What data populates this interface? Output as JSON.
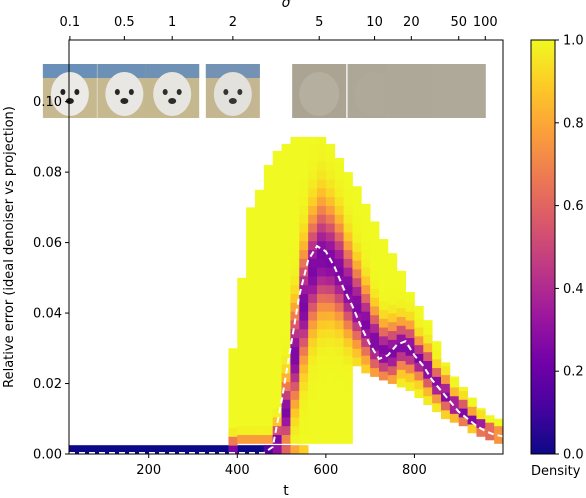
{
  "chart_data": {
    "type": "heatmap",
    "title": "",
    "xlabel": "t",
    "ylabel": "Relative error (ideal denoiser vs projection)",
    "x2label": "σ",
    "xlim": [
      20,
      1000
    ],
    "ylim": [
      0,
      0.1175
    ],
    "x_ticks": [
      200,
      400,
      600,
      800
    ],
    "x_tick_labels": [
      "200",
      "400",
      "600",
      "800"
    ],
    "y_ticks": [
      0,
      0.02,
      0.04,
      0.06,
      0.08,
      0.1
    ],
    "y_tick_labels": [
      "0.00",
      "0.02",
      "0.04",
      "0.06",
      "0.08",
      "0.10"
    ],
    "sigma_ticks": [
      {
        "label": "0.1",
        "t": 22
      },
      {
        "label": "0.5",
        "t": 145
      },
      {
        "label": "1",
        "t": 253
      },
      {
        "label": "2",
        "t": 390
      },
      {
        "label": "5",
        "t": 585
      },
      {
        "label": "10",
        "t": 710
      },
      {
        "label": "20",
        "t": 793
      },
      {
        "label": "50",
        "t": 900
      },
      {
        "label": "100",
        "t": 960
      }
    ],
    "colorbar": {
      "label": "Density",
      "range": [
        0,
        1
      ],
      "ticks": [
        0,
        0.2,
        0.4,
        0.6,
        0.8,
        1
      ],
      "tick_labels": [
        "0.0",
        "0.2",
        "0.4",
        "0.6",
        "0.8",
        "1.0"
      ],
      "colormap": [
        "#0d0887",
        "#46039f",
        "#7201a8",
        "#9c179e",
        "#bd3786",
        "#d8576b",
        "#ed7953",
        "#fb9f3a",
        "#fdca26",
        "#f0f921"
      ]
    },
    "mean_line": {
      "style": "white-dashed",
      "x": [
        20,
        460,
        480,
        500,
        520,
        540,
        560,
        580,
        600,
        620,
        640,
        660,
        680,
        700,
        720,
        740,
        760,
        780,
        800,
        820,
        840,
        860,
        880,
        900,
        920,
        940,
        960,
        980,
        1000
      ],
      "y": [
        0.0003,
        0.0003,
        0.002,
        0.015,
        0.03,
        0.045,
        0.055,
        0.059,
        0.0575,
        0.053,
        0.047,
        0.042,
        0.036,
        0.031,
        0.027,
        0.028,
        0.031,
        0.032,
        0.028,
        0.025,
        0.021,
        0.018,
        0.015,
        0.012,
        0.01,
        0.008,
        0.0065,
        0.0055,
        0.005
      ]
    },
    "density_columns": [
      {
        "x0": 20,
        "x1": 460,
        "low": 0.0,
        "high": 0.0025,
        "peak": 0.0012,
        "spread": 0.0015
      },
      {
        "x0": 460,
        "x1": 480,
        "low": 0.0,
        "high": 0.0025,
        "peak": 0.0012,
        "spread": 0.0015
      },
      {
        "x0": 480,
        "x1": 500,
        "low": 0.0,
        "high": 0.0025,
        "peak": 0.0012,
        "spread": 0.0016
      },
      {
        "x0": 500,
        "x1": 520,
        "low": 0.0,
        "high": 0.0025,
        "peak": 0.0012,
        "spread": 0.0018
      },
      {
        "x0": 380,
        "x1": 400,
        "low": 0.0,
        "high": 0.03,
        "peak": 0.001,
        "spread": 0.003
      },
      {
        "x0": 400,
        "x1": 420,
        "low": 0.003,
        "high": 0.05,
        "peak": 0.001,
        "spread": 0.003
      },
      {
        "x0": 420,
        "x1": 440,
        "low": 0.003,
        "high": 0.07,
        "peak": 0.001,
        "spread": 0.003
      },
      {
        "x0": 440,
        "x1": 460,
        "low": 0.003,
        "high": 0.075,
        "peak": 0.001,
        "spread": 0.003
      },
      {
        "x0": 460,
        "x1": 480,
        "low": 0.003,
        "high": 0.082,
        "peak": 0.001,
        "spread": 0.003
      },
      {
        "x0": 480,
        "x1": 500,
        "low": 0.003,
        "high": 0.086,
        "peak": 0.004,
        "spread": 0.004
      },
      {
        "x0": 500,
        "x1": 520,
        "low": 0.003,
        "high": 0.088,
        "peak": 0.012,
        "spread": 0.008
      },
      {
        "x0": 520,
        "x1": 540,
        "low": 0.003,
        "high": 0.09,
        "peak": 0.028,
        "spread": 0.012
      },
      {
        "x0": 540,
        "x1": 560,
        "low": 0.003,
        "high": 0.09,
        "peak": 0.042,
        "spread": 0.014
      },
      {
        "x0": 560,
        "x1": 580,
        "low": 0.003,
        "high": 0.09,
        "peak": 0.052,
        "spread": 0.014
      },
      {
        "x0": 580,
        "x1": 600,
        "low": 0.003,
        "high": 0.09,
        "peak": 0.056,
        "spread": 0.014
      },
      {
        "x0": 600,
        "x1": 620,
        "low": 0.003,
        "high": 0.088,
        "peak": 0.055,
        "spread": 0.013
      },
      {
        "x0": 620,
        "x1": 640,
        "low": 0.003,
        "high": 0.084,
        "peak": 0.052,
        "spread": 0.012
      },
      {
        "x0": 640,
        "x1": 660,
        "low": 0.003,
        "high": 0.08,
        "peak": 0.047,
        "spread": 0.011
      },
      {
        "x0": 660,
        "x1": 680,
        "low": 0.025,
        "high": 0.076,
        "peak": 0.042,
        "spread": 0.01
      },
      {
        "x0": 680,
        "x1": 700,
        "low": 0.023,
        "high": 0.071,
        "peak": 0.037,
        "spread": 0.009
      },
      {
        "x0": 700,
        "x1": 720,
        "low": 0.022,
        "high": 0.066,
        "peak": 0.032,
        "spread": 0.008
      },
      {
        "x0": 720,
        "x1": 740,
        "low": 0.021,
        "high": 0.061,
        "peak": 0.029,
        "spread": 0.007
      },
      {
        "x0": 740,
        "x1": 760,
        "low": 0.02,
        "high": 0.057,
        "peak": 0.029,
        "spread": 0.007
      },
      {
        "x0": 760,
        "x1": 780,
        "low": 0.019,
        "high": 0.052,
        "peak": 0.031,
        "spread": 0.006
      },
      {
        "x0": 780,
        "x1": 800,
        "low": 0.018,
        "high": 0.046,
        "peak": 0.03,
        "spread": 0.006
      },
      {
        "x0": 800,
        "x1": 820,
        "low": 0.016,
        "high": 0.042,
        "peak": 0.027,
        "spread": 0.005
      },
      {
        "x0": 820,
        "x1": 840,
        "low": 0.014,
        "high": 0.038,
        "peak": 0.024,
        "spread": 0.005
      },
      {
        "x0": 840,
        "x1": 860,
        "low": 0.012,
        "high": 0.032,
        "peak": 0.02,
        "spread": 0.004
      },
      {
        "x0": 860,
        "x1": 880,
        "low": 0.01,
        "high": 0.026,
        "peak": 0.017,
        "spread": 0.004
      },
      {
        "x0": 880,
        "x1": 900,
        "low": 0.009,
        "high": 0.022,
        "peak": 0.014,
        "spread": 0.003
      },
      {
        "x0": 900,
        "x1": 920,
        "low": 0.008,
        "high": 0.019,
        "peak": 0.012,
        "spread": 0.003
      },
      {
        "x0": 920,
        "x1": 940,
        "low": 0.006,
        "high": 0.016,
        "peak": 0.01,
        "spread": 0.002
      },
      {
        "x0": 940,
        "x1": 960,
        "low": 0.005,
        "high": 0.013,
        "peak": 0.008,
        "spread": 0.002
      },
      {
        "x0": 960,
        "x1": 980,
        "low": 0.004,
        "high": 0.011,
        "peak": 0.0065,
        "spread": 0.0015
      },
      {
        "x0": 980,
        "x1": 1000,
        "low": 0.003,
        "high": 0.01,
        "peak": 0.0055,
        "spread": 0.0012
      }
    ],
    "image_strip": [
      {
        "t": 22,
        "noise": 0.0
      },
      {
        "t": 145,
        "noise": 0.05
      },
      {
        "t": 253,
        "noise": 0.1
      },
      {
        "t": 390,
        "noise": 0.18
      },
      {
        "t": 585,
        "noise": 0.55
      },
      {
        "t": 710,
        "noise": 0.8
      },
      {
        "t": 793,
        "noise": 0.9
      },
      {
        "t": 900,
        "noise": 0.96
      }
    ]
  }
}
